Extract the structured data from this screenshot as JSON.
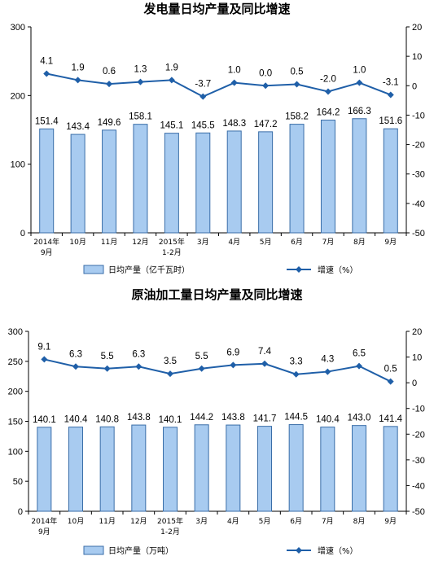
{
  "chart_data": [
    {
      "type": "bar+line",
      "title": "发电量日均产量及同比增速",
      "categories": [
        [
          "2014年",
          "9月"
        ],
        [
          "10月"
        ],
        [
          "11月"
        ],
        [
          "12月"
        ],
        [
          "2015年",
          "1-2月"
        ],
        [
          "3月"
        ],
        [
          "4月"
        ],
        [
          "5月"
        ],
        [
          "6月"
        ],
        [
          "7月"
        ],
        [
          "8月"
        ],
        [
          "9月"
        ]
      ],
      "series": [
        {
          "name": "日均产量（亿千瓦时）",
          "type": "bar",
          "axis": "left",
          "values": [
            151.4,
            143.4,
            149.6,
            158.1,
            145.1,
            145.5,
            148.3,
            147.2,
            158.2,
            164.2,
            166.3,
            151.6
          ]
        },
        {
          "name": "增速（%）",
          "type": "line",
          "axis": "right",
          "values": [
            4.1,
            1.9,
            0.6,
            1.3,
            1.9,
            -3.7,
            1.0,
            0.0,
            0.5,
            -2.0,
            1.0,
            -3.1
          ]
        }
      ],
      "bar_labels": [
        "151.4",
        "143.4",
        "149.6",
        "158.1",
        "145.1",
        "145.5",
        "148.3",
        "147.2",
        "158.2",
        "164.2",
        "166.3",
        "151.6"
      ],
      "line_labels": [
        "4.1",
        "1.9",
        "0.6",
        "1.3",
        "1.9",
        "-3.7",
        "1.0",
        "0.0",
        "0.5",
        "-2.0",
        "1.0",
        "-3.1"
      ],
      "left_axis": {
        "min": 0,
        "max": 300,
        "ticks": [
          0,
          100,
          200,
          300
        ]
      },
      "right_axis": {
        "min": -50,
        "max": 20,
        "ticks": [
          20,
          10,
          0,
          -10,
          -20,
          -30,
          -40,
          -50
        ]
      },
      "legend_position": "bottom",
      "colors": {
        "bar_fill": "#a8cbf0",
        "bar_stroke": "#3a6ea8",
        "line": "#1f5fa8"
      }
    },
    {
      "type": "bar+line",
      "title": "原油加工量日均产量及同比增速",
      "categories": [
        [
          "2014年",
          "9月"
        ],
        [
          "10月"
        ],
        [
          "11月"
        ],
        [
          "12月"
        ],
        [
          "2015年",
          "1-2月"
        ],
        [
          "3月"
        ],
        [
          "4月"
        ],
        [
          "5月"
        ],
        [
          "6月"
        ],
        [
          "7月"
        ],
        [
          "8月"
        ],
        [
          "9月"
        ]
      ],
      "series": [
        {
          "name": "日均产量（万吨）",
          "type": "bar",
          "axis": "left",
          "values": [
            140.1,
            140.4,
            140.8,
            143.8,
            140.1,
            144.2,
            143.8,
            141.7,
            144.5,
            140.4,
            143.0,
            141.4
          ]
        },
        {
          "name": "增速（%）",
          "type": "line",
          "axis": "right",
          "values": [
            9.1,
            6.3,
            5.5,
            6.3,
            3.5,
            5.5,
            6.9,
            7.4,
            3.3,
            4.3,
            6.5,
            0.5
          ]
        }
      ],
      "bar_labels": [
        "140.1",
        "140.4",
        "140.8",
        "143.8",
        "140.1",
        "144.2",
        "143.8",
        "141.7",
        "144.5",
        "140.4",
        "143.0",
        "141.4"
      ],
      "line_labels": [
        "9.1",
        "6.3",
        "5.5",
        "6.3",
        "3.5",
        "5.5",
        "6.9",
        "7.4",
        "3.3",
        "4.3",
        "6.5",
        "0.5"
      ],
      "left_axis": {
        "min": 0,
        "max": 300,
        "ticks": [
          0,
          50,
          100,
          150,
          200,
          250,
          300
        ]
      },
      "right_axis": {
        "min": -50,
        "max": 20,
        "ticks": [
          20,
          10,
          0,
          -10,
          -20,
          -30,
          -40,
          -50
        ]
      },
      "legend_position": "bottom",
      "colors": {
        "bar_fill": "#a8cbf0",
        "bar_stroke": "#3a6ea8",
        "line": "#1f5fa8"
      }
    }
  ]
}
